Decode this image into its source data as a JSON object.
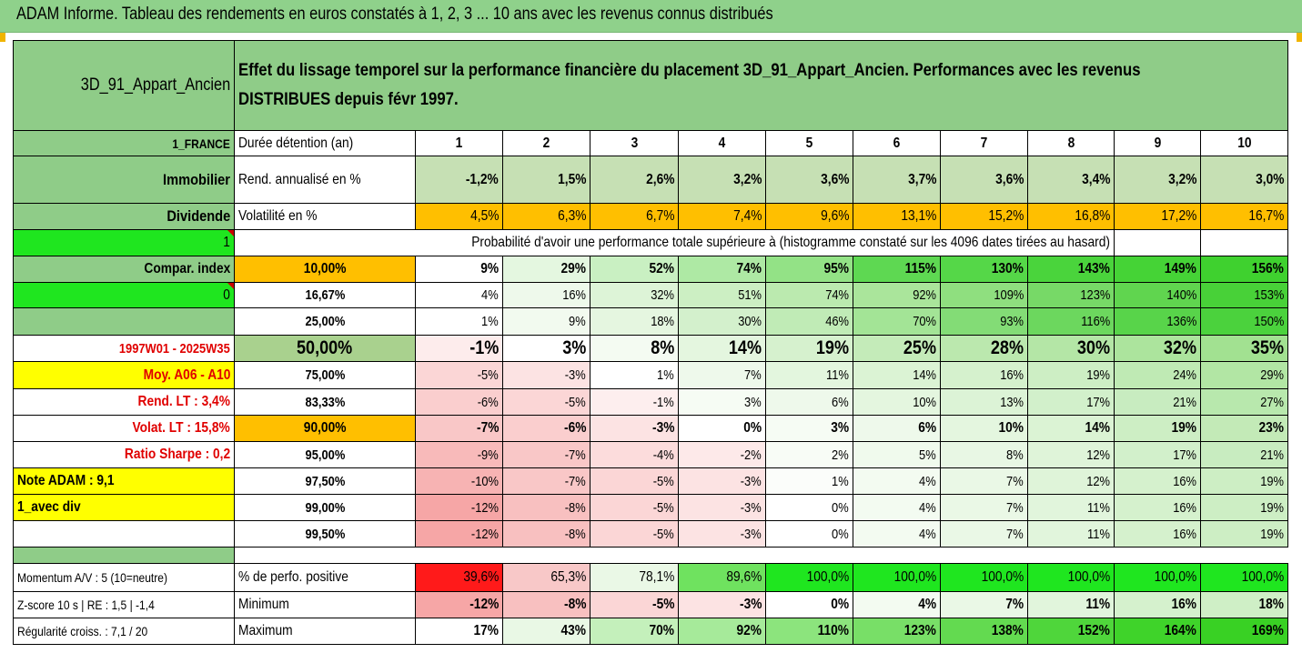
{
  "header": {
    "title": "ADAM Informe. Tableau des rendements en euros constatés à 1, 2, 3 ... 10 ans avec les revenus connus distribués"
  },
  "colors": {
    "label_green": "#8fcc88",
    "dark_green": "#5fbf5f",
    "bright_green": "#1fe61f",
    "orange": "#ffbf00",
    "yellow": "#ffff00",
    "red_text": "#e00000",
    "neg_red": "#ff1a1a"
  },
  "rows": [
    {
      "id": "title",
      "cells": [
        {
          "k": "L",
          "text": "3D_91_Appart_Ancien",
          "size": 19,
          "bg": "#8fcc88"
        },
        {
          "k": "SPAN_TITLE",
          "text": "Effet du lissage temporel sur la performance financière du placement 3D_91_Appart_Ancien. Performances avec les revenus DISTRIBUES depuis févr 1997.",
          "size": 19,
          "bold": true,
          "bg": "#8fcc88"
        }
      ]
    },
    {
      "id": "duree",
      "cells": [
        {
          "k": "L",
          "text": "1_FRANCE",
          "bold": true,
          "size": 14,
          "bg": "#8fcc88"
        },
        {
          "k": "M",
          "text": "Durée détention (an)",
          "align": "l",
          "size": 16
        },
        {
          "k": "D",
          "values": [
            "1",
            "2",
            "3",
            "4",
            "5",
            "6",
            "7",
            "8",
            "9",
            "10"
          ],
          "bold": true,
          "align": "ctr",
          "size": 16,
          "bg": "#ffffff"
        }
      ]
    },
    {
      "id": "rend",
      "cells": [
        {
          "k": "L",
          "text": "Immobilier",
          "bold": true,
          "size": 17,
          "bg": "#8fcc88"
        },
        {
          "k": "M",
          "text": "Rend. annualisé en %",
          "align": "l",
          "size": 16
        },
        {
          "k": "D",
          "values": [
            "-1,2%",
            "1,5%",
            "2,6%",
            "3,2%",
            "3,6%",
            "3,7%",
            "3,6%",
            "3,4%",
            "3,2%",
            "3,0%"
          ],
          "bold": true,
          "size": 16,
          "bg": "#c6e0b4"
        }
      ]
    },
    {
      "id": "volat",
      "cells": [
        {
          "k": "L",
          "text": "Dividende",
          "bold": true,
          "size": 17,
          "bg": "#8fcc88"
        },
        {
          "k": "M",
          "text": "Volatilité en %",
          "align": "l",
          "size": 16
        },
        {
          "k": "D",
          "values": [
            "4,5%",
            "6,3%",
            "6,7%",
            "7,4%",
            "9,6%",
            "13,1%",
            "15,2%",
            "16,8%",
            "17,2%",
            "16,7%"
          ],
          "size": 16,
          "bg": "#ffbf00"
        }
      ]
    },
    {
      "id": "proba",
      "cells": [
        {
          "k": "L",
          "text": "1",
          "size": 16,
          "bg": "#1fe61f",
          "marker": true
        },
        {
          "k": "SPAN_PROBA",
          "text": "Probabilité d'avoir une performance totale supérieure à (histogramme constaté sur les 4096 dates tirées au hasard)",
          "size": 16
        },
        {
          "k": "D9"
        },
        {
          "k": "D10"
        }
      ]
    },
    {
      "id": "p10",
      "cells": [
        {
          "k": "L",
          "text": "Compar. index",
          "bold": true,
          "size": 16,
          "bg": "#8fcc88"
        },
        {
          "k": "M",
          "text": "10,00%",
          "bold": true,
          "align": "ctr",
          "size": 16,
          "bg": "#ffbf00"
        },
        {
          "k": "D",
          "values": [
            "9%",
            "29%",
            "52%",
            "74%",
            "95%",
            "115%",
            "130%",
            "143%",
            "149%",
            "156%"
          ],
          "bold": true,
          "size": 16,
          "bgs": [
            "#ffffff",
            "#e4f7e0",
            "#c9f0c2",
            "#aee9a4",
            "#93e286",
            "#5ed852",
            "#55d748",
            "#4ad43c",
            "#45d336",
            "#3fd12f"
          ]
        }
      ]
    },
    {
      "id": "p1667",
      "cells": [
        {
          "k": "L",
          "text": "0",
          "size": 16,
          "bg": "#1fe61f",
          "marker": true
        },
        {
          "k": "M",
          "text": "16,67%",
          "bold": true,
          "align": "ctr",
          "size": 15
        },
        {
          "k": "D",
          "values": [
            "4%",
            "16%",
            "32%",
            "51%",
            "74%",
            "92%",
            "109%",
            "123%",
            "140%",
            "153%"
          ],
          "size": 15,
          "bgs": [
            "#ffffff",
            "#eef9eb",
            "#ddf4d7",
            "#ccefc3",
            "#bbeaaf",
            "#aae59b",
            "#8fdf7f",
            "#77d967",
            "#60d54f",
            "#48d138"
          ]
        }
      ]
    },
    {
      "id": "p25",
      "cells": [
        {
          "k": "L",
          "text": "",
          "bg": "#8fcc88"
        },
        {
          "k": "M",
          "text": "25,00%",
          "bold": true,
          "align": "ctr",
          "size": 15
        },
        {
          "k": "D",
          "values": [
            "1%",
            "9%",
            "18%",
            "30%",
            "46%",
            "70%",
            "93%",
            "116%",
            "136%",
            "150%"
          ],
          "size": 15,
          "bgs": [
            "#ffffff",
            "#f2faef",
            "#e5f6e0",
            "#d3f0cc",
            "#c0ebb6",
            "#a3e496",
            "#83dc76",
            "#6cd75e",
            "#58d44a",
            "#4bd23d"
          ]
        }
      ]
    },
    {
      "id": "p50",
      "big": true,
      "cells": [
        {
          "k": "L",
          "text": "1997W01 - 2025W35",
          "bold": true,
          "color": "#e00000",
          "size": 15,
          "bg": "#ffffff"
        },
        {
          "k": "M",
          "text": "50,00%",
          "bold": true,
          "align": "ctr",
          "size": 21,
          "bg": "#a9d18e"
        },
        {
          "k": "D",
          "values": [
            "-1%",
            "3%",
            "8%",
            "14%",
            "19%",
            "25%",
            "28%",
            "30%",
            "32%",
            "35%"
          ],
          "bold": true,
          "size": 21,
          "bgs": [
            "#fdecec",
            "#ffffff",
            "#f4fbf2",
            "#e4f6df",
            "#d6f1ce",
            "#c4ebb9",
            "#bbe8ae",
            "#b4e6a6",
            "#acE49d",
            "#a2e191"
          ]
        }
      ]
    },
    {
      "id": "p75",
      "cells": [
        {
          "k": "L",
          "text": "Moy. A06 - A10",
          "bold": true,
          "color": "#e00000",
          "size": 16,
          "bg": "#ffff00",
          "align": "r"
        },
        {
          "k": "M",
          "text": "75,00%",
          "bold": true,
          "align": "ctr",
          "size": 15
        },
        {
          "k": "D",
          "values": [
            "-5%",
            "-3%",
            "1%",
            "7%",
            "11%",
            "14%",
            "16%",
            "19%",
            "24%",
            "29%"
          ],
          "size": 15,
          "bgs": [
            "#fbd6d6",
            "#fce3e3",
            "#ffffff",
            "#eef9eb",
            "#e3f6de",
            "#dbf3d4",
            "#d5f1cd",
            "#cdeec4",
            "#bfeab4",
            "#b2e6a4"
          ]
        }
      ]
    },
    {
      "id": "p8333",
      "cells": [
        {
          "k": "L",
          "text": "Rend. LT :    3,4%",
          "bold": true,
          "color": "#e00000",
          "size": 16,
          "bg": "#ffffff",
          "align": "r"
        },
        {
          "k": "M",
          "text": "83,33%",
          "bold": true,
          "align": "ctr",
          "size": 15
        },
        {
          "k": "D",
          "values": [
            "-6%",
            "-5%",
            "-1%",
            "3%",
            "6%",
            "10%",
            "13%",
            "17%",
            "21%",
            "27%"
          ],
          "size": 15,
          "bgs": [
            "#face ce",
            "#fbd6d6",
            "#fdeeee",
            "#f6fcf4",
            "#eef9eb",
            "#e4f6df",
            "#dcf3d6",
            "#d2f0cb",
            "#c8ecc0",
            "#b8e8ad"
          ]
        }
      ]
    },
    {
      "id": "p90",
      "cells": [
        {
          "k": "L",
          "text": "Volat. LT :   15,8%",
          "bold": true,
          "color": "#e00000",
          "size": 16,
          "bg": "#ffffff",
          "align": "r"
        },
        {
          "k": "M",
          "text": "90,00%",
          "bold": true,
          "align": "ctr",
          "size": 16,
          "bg": "#ffbf00"
        },
        {
          "k": "D",
          "values": [
            "-7%",
            "-6%",
            "-3%",
            "0%",
            "3%",
            "6%",
            "10%",
            "14%",
            "19%",
            "23%"
          ],
          "bold": true,
          "size": 16,
          "bgs": [
            "#f9c7c7",
            "#face ce",
            "#fce3e3",
            "#ffffff",
            "#f6fcf4",
            "#eef9eb",
            "#e4f6df",
            "#dbf3d4",
            "#cdeec4",
            "#c3eab7"
          ]
        }
      ]
    },
    {
      "id": "p95",
      "cells": [
        {
          "k": "L",
          "text": "Ratio Sharpe :    0,2",
          "bold": true,
          "color": "#e00000",
          "size": 16,
          "bg": "#ffffff",
          "align": "r"
        },
        {
          "k": "M",
          "text": "95,00%",
          "bold": true,
          "align": "ctr",
          "size": 15
        },
        {
          "k": "D",
          "values": [
            "-9%",
            "-7%",
            "-4%",
            "-2%",
            "2%",
            "5%",
            "8%",
            "12%",
            "17%",
            "21%"
          ],
          "size": 15,
          "bgs": [
            "#f8baba",
            "#f9c7c7",
            "#fcdcdc",
            "#fde9e9",
            "#f8fcf6",
            "#f0faed",
            "#e8f7e4",
            "#dff4d9",
            "#d2f0cb",
            "#c8ecc0"
          ]
        }
      ]
    },
    {
      "id": "p975",
      "cells": [
        {
          "k": "L",
          "text": "Note ADAM : 9,1",
          "bold": true,
          "size": 16,
          "bg": "#ffff00",
          "align": "l"
        },
        {
          "k": "M",
          "text": "97,50%",
          "bold": true,
          "align": "ctr",
          "size": 15
        },
        {
          "k": "D",
          "values": [
            "-10%",
            "-7%",
            "-5%",
            "-3%",
            "1%",
            "4%",
            "7%",
            "12%",
            "16%",
            "19%"
          ],
          "size": 15,
          "bgs": [
            "#f7b3b3",
            "#f9c7c7",
            "#fbd6d6",
            "#fce3e3",
            "#fbfdfa",
            "#f3fbf1",
            "#eaf8e6",
            "#dff4d9",
            "#d5f1cd",
            "#cdeec4"
          ]
        }
      ]
    },
    {
      "id": "p99",
      "cells": [
        {
          "k": "L",
          "text": "1_avec div",
          "bold": true,
          "size": 16,
          "bg": "#ffff00",
          "align": "l"
        },
        {
          "k": "M",
          "text": "99,00%",
          "bold": true,
          "align": "ctr",
          "size": 15
        },
        {
          "k": "D",
          "values": [
            "-12%",
            "-8%",
            "-5%",
            "-3%",
            "0%",
            "4%",
            "7%",
            "11%",
            "16%",
            "19%"
          ],
          "size": 15,
          "bgs": [
            "#f6a6a6",
            "#f8c0c0",
            "#fbd6d6",
            "#fce3e3",
            "#ffffff",
            "#f3fbf1",
            "#eaf8e6",
            "#e1f5dc",
            "#d5f1cd",
            "#cdeec4"
          ]
        }
      ]
    },
    {
      "id": "p995",
      "cells": [
        {
          "k": "L",
          "text": "",
          "bg": "#ffffff"
        },
        {
          "k": "M",
          "text": "99,50%",
          "bold": true,
          "align": "ctr",
          "size": 15
        },
        {
          "k": "D",
          "values": [
            "-12%",
            "-8%",
            "-5%",
            "-3%",
            "0%",
            "4%",
            "7%",
            "11%",
            "16%",
            "19%"
          ],
          "size": 15,
          "bgs": [
            "#f6a6a6",
            "#f8c0c0",
            "#fbd6d6",
            "#fce3e3",
            "#ffffff",
            "#f3fbf1",
            "#eaf8e6",
            "#e1f5dc",
            "#d5f1cd",
            "#cdeec4"
          ]
        }
      ]
    },
    {
      "id": "sep",
      "cells": []
    },
    {
      "id": "momentum",
      "cells": [
        {
          "k": "L",
          "text": "Momentum A/V : 5 (10=neutre)",
          "size": 14,
          "bg": "#ffffff",
          "align": "l"
        },
        {
          "k": "M",
          "text": "% de perfo. positive",
          "align": "l",
          "size": 16
        },
        {
          "k": "D",
          "values": [
            "39,6%",
            "65,3%",
            "78,1%",
            "89,6%",
            "100,0%",
            "100,0%",
            "100,0%",
            "100,0%",
            "100,0%",
            "100,0%"
          ],
          "size": 16,
          "bgs": [
            "#ff1a1a",
            "#f8c8c8",
            "#eaf8e6",
            "#6fe25f",
            "#1fe61f",
            "#1fe61f",
            "#1fe61f",
            "#1fe61f",
            "#1fe61f",
            "#1fe61f"
          ]
        }
      ]
    },
    {
      "id": "min",
      "cells": [
        {
          "k": "L",
          "text": "Z-score 10 s  | RE : 1,5  | -1,4",
          "size": 14,
          "bg": "#ffffff",
          "align": "l"
        },
        {
          "k": "M",
          "text": "Minimum",
          "align": "l",
          "size": 16
        },
        {
          "k": "D",
          "values": [
            "-12%",
            "-8%",
            "-5%",
            "-3%",
            "0%",
            "4%",
            "7%",
            "11%",
            "16%",
            "18%"
          ],
          "bold": true,
          "size": 16,
          "bgs": [
            "#f6a6a6",
            "#f8c0c0",
            "#fbd6d6",
            "#fce3e3",
            "#ffffff",
            "#f3fbf1",
            "#eaf8e6",
            "#e1f5dc",
            "#d5f1cd",
            "#cfefc6"
          ]
        }
      ]
    },
    {
      "id": "max",
      "cells": [
        {
          "k": "L",
          "text": "Régularité croiss. : 7,1 / 20",
          "size": 14,
          "bg": "#ffffff",
          "align": "l"
        },
        {
          "k": "M",
          "text": "Maximum",
          "align": "l",
          "size": 16
        },
        {
          "k": "D",
          "values": [
            "17%",
            "43%",
            "70%",
            "92%",
            "110%",
            "123%",
            "138%",
            "152%",
            "164%",
            "169%"
          ],
          "bold": true,
          "size": 16,
          "bgs": [
            "#ffffff",
            "#e9f8e5",
            "#c4f0bb",
            "#a6ea9a",
            "#8ce47d",
            "#78df67",
            "#63da50",
            "#4fd63b",
            "#3fd32a",
            "#39d124"
          ]
        }
      ]
    }
  ]
}
